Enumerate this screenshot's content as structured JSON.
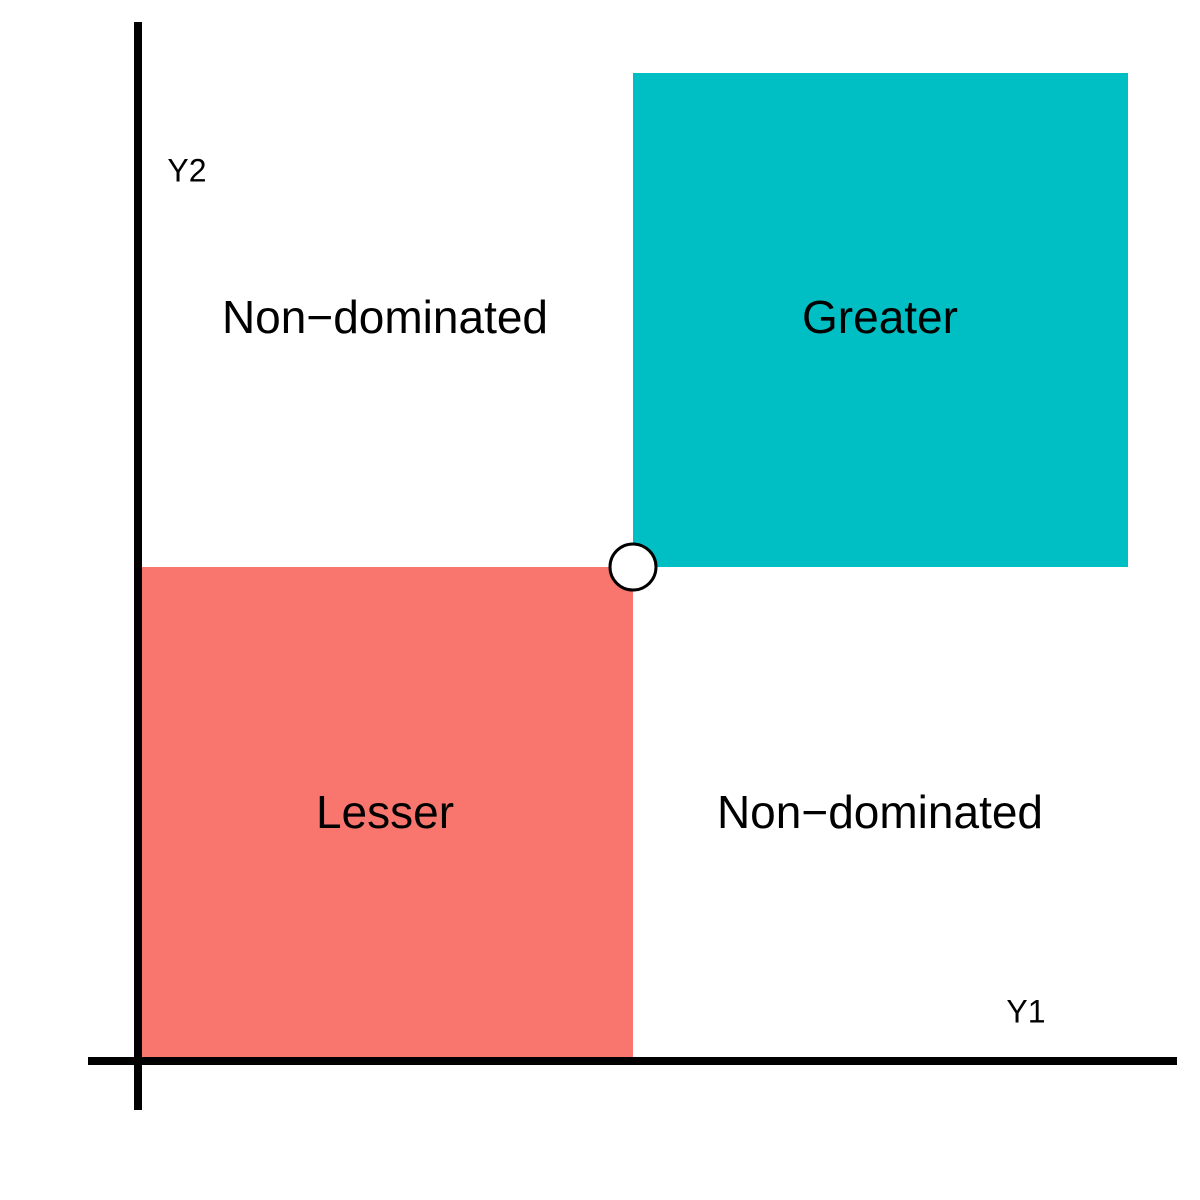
{
  "diagram": {
    "axes": {
      "x_label": "Y1",
      "y_label": "Y2"
    },
    "regions": {
      "top_left": {
        "label": "Non−dominated",
        "color": ""
      },
      "top_right": {
        "label": "Greater",
        "color": "#00BFC4"
      },
      "bottom_left": {
        "label": "Lesser",
        "color": "#F8766D"
      },
      "bottom_right": {
        "label": "Non−dominated",
        "color": ""
      }
    },
    "reference_point": {
      "fill": "#FFFFFF",
      "stroke": "#000000"
    },
    "axis_color": "#000000"
  }
}
